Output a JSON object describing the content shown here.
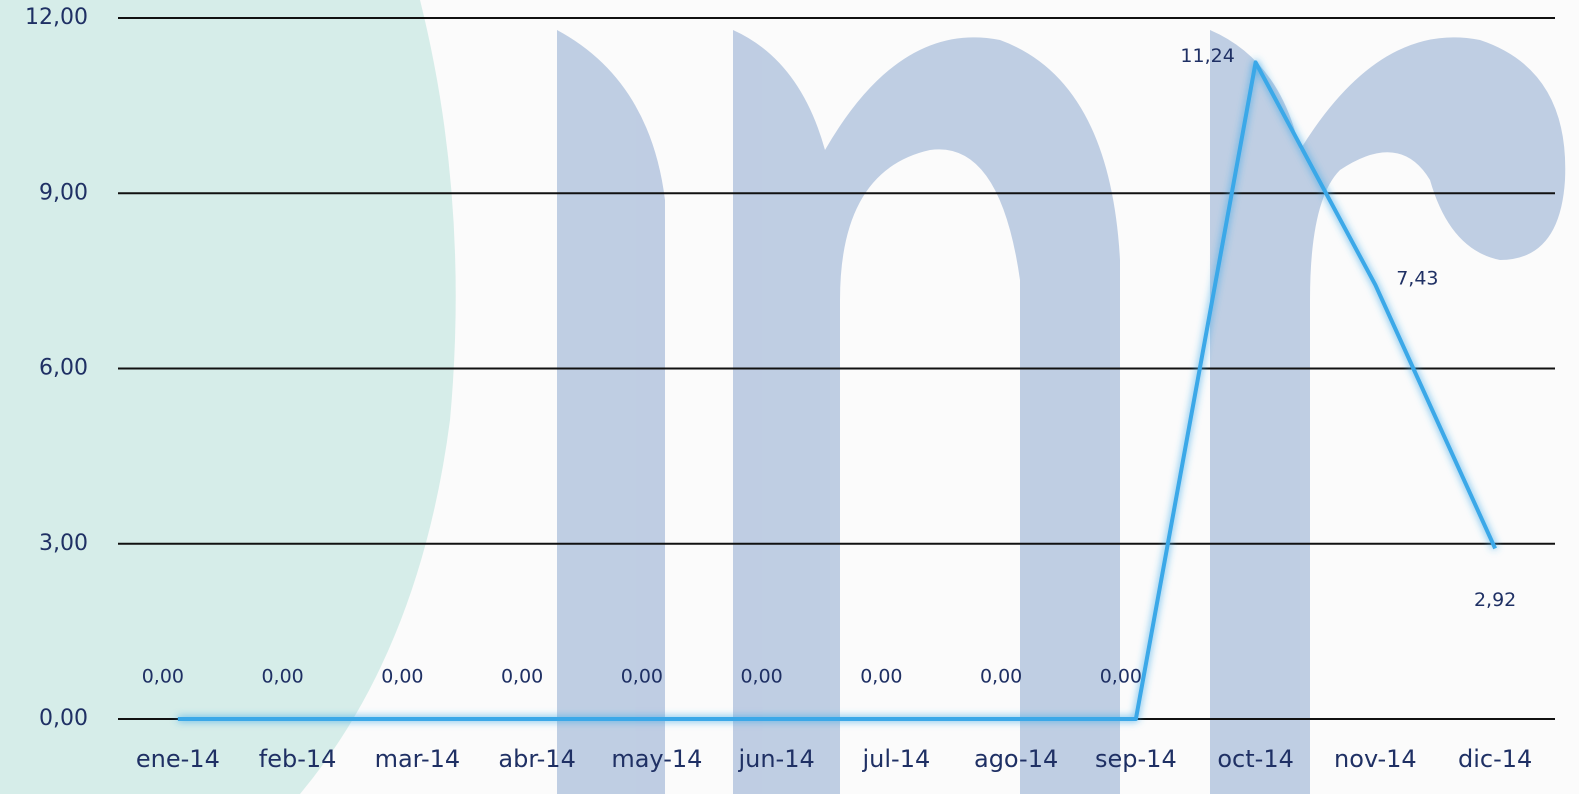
{
  "chart_data": {
    "type": "line",
    "categories": [
      "ene-14",
      "feb-14",
      "mar-14",
      "abr-14",
      "may-14",
      "jun-14",
      "jul-14",
      "ago-14",
      "sep-14",
      "oct-14",
      "nov-14",
      "dic-14"
    ],
    "series": [
      {
        "color": "#3aa8e8",
        "values": [
          0,
          0,
          0,
          0,
          0,
          0,
          0,
          0,
          0,
          11.24,
          7.43,
          2.92
        ],
        "value_labels": [
          "0,00",
          "0,00",
          "0,00",
          "0,00",
          "0,00",
          "0,00",
          "0,00",
          "0,00",
          "0,00",
          "11,24",
          "7,43",
          "2,92"
        ]
      }
    ],
    "ylim": [
      0,
      12
    ],
    "yticks": [
      {
        "value": 0,
        "label": "0,00"
      },
      {
        "value": 3,
        "label": "3,00"
      },
      {
        "value": 6,
        "label": "6,00"
      },
      {
        "value": 9,
        "label": "9,00"
      },
      {
        "value": 12,
        "label": "12,00"
      }
    ],
    "grid": true
  }
}
